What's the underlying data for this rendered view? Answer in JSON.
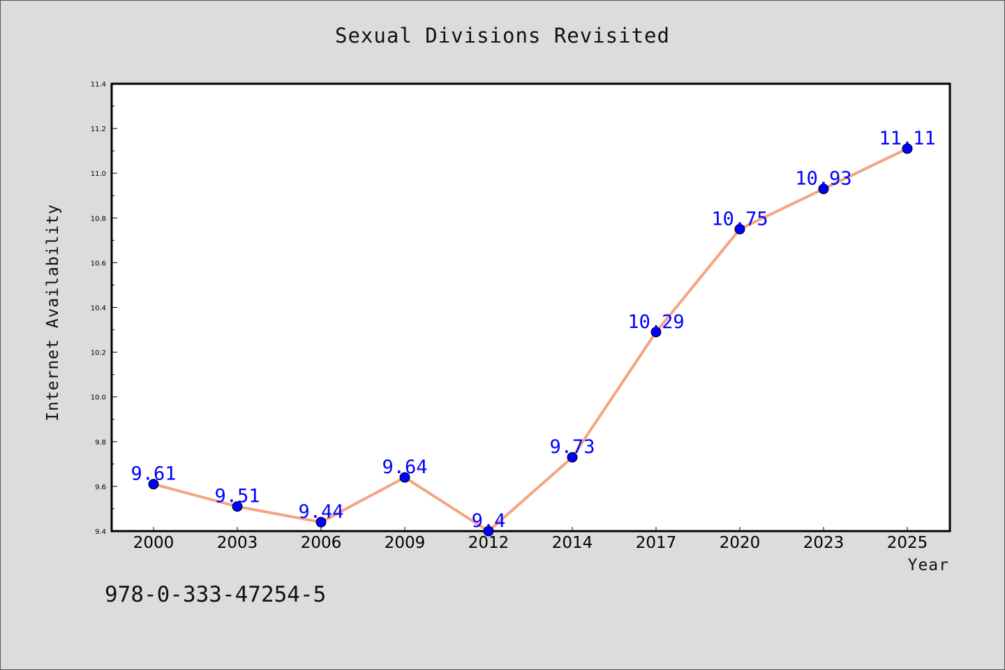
{
  "chart_data": {
    "type": "line",
    "title": "Sexual Divisions Revisited",
    "xlabel": "Year",
    "ylabel": "Internet Availability",
    "categories": [
      "2000",
      "2003",
      "2006",
      "2009",
      "2012",
      "2014",
      "2017",
      "2020",
      "2023",
      "2025"
    ],
    "series": [
      {
        "values": [
          9.61,
          9.51,
          9.44,
          9.64,
          9.4,
          9.73,
          10.29,
          10.75,
          10.93,
          11.11
        ],
        "data_labels": [
          "9.61",
          "9.51",
          "9.44",
          "9.64",
          "9.4",
          "9.73",
          "10.29",
          "10.75",
          "10.93",
          "11.11"
        ]
      }
    ],
    "ylim": [
      9.4,
      11.4
    ],
    "yticks": [
      "9.4",
      "9.6",
      "9.8",
      "10.0",
      "10.2",
      "10.4",
      "10.6",
      "10.8",
      "11.0",
      "11.2",
      "11.4"
    ],
    "grid": false,
    "colors": {
      "line": "#f4a582",
      "marker": "#0000ff",
      "data_label": "#0000ff",
      "axes": "#000000"
    }
  },
  "footer": {
    "isbn": "978-0-333-47254-5"
  }
}
